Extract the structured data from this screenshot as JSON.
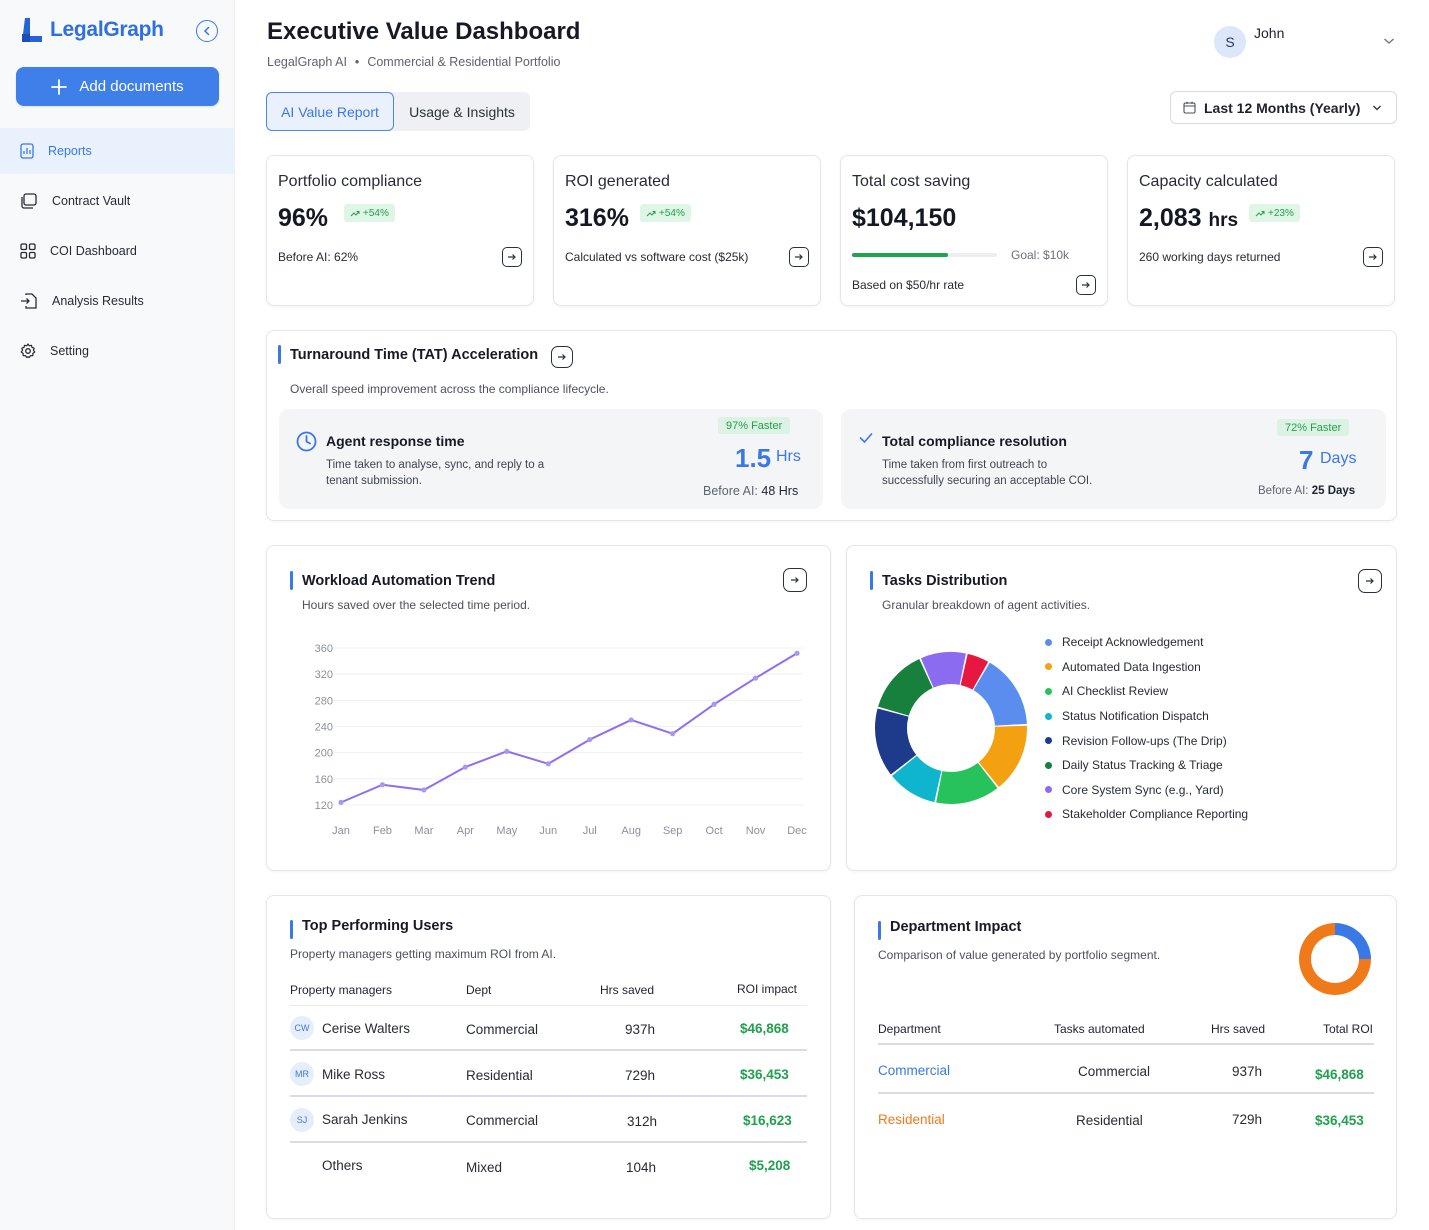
{
  "app": {
    "name": "LegalGraph"
  },
  "sidebar": {
    "add_label": "Add documents",
    "items": [
      {
        "label": "Reports",
        "icon": "reports-icon",
        "active": true
      },
      {
        "label": "Contract Vault",
        "icon": "folder-copy-icon",
        "active": false
      },
      {
        "label": "COI Dashboard",
        "icon": "grid-icon",
        "active": false
      },
      {
        "label": "Analysis Results",
        "icon": "file-import-icon",
        "active": false
      },
      {
        "label": "Setting",
        "icon": "gear-icon",
        "active": false
      }
    ]
  },
  "header": {
    "title": "Executive Value Dashboard",
    "breadcrumb": [
      "LegalGraph AI",
      "•",
      "Commercial & Residential Portfolio"
    ],
    "user_initial": "S",
    "user_name": "John",
    "tabs": [
      "AI Value Report",
      "Usage & Insights"
    ],
    "range": "Last 12 Months (Yearly)"
  },
  "kpis": [
    {
      "title": "Portfolio compliance",
      "value": "96%",
      "badge": "+54%",
      "note": "Before AI: 62%"
    },
    {
      "title": "ROI generated",
      "value": "316%",
      "badge": "+54%",
      "note": "Calculated vs software cost ($25k)"
    },
    {
      "title": "Total cost saving",
      "value": "$104,150",
      "goal": "Goal: $10k",
      "progress_pct": 66,
      "note": "Based on $50/hr rate"
    },
    {
      "title": "Capacity calculated",
      "value": "2,083",
      "unit": "hrs",
      "badge": "+23%",
      "note": "260 working days returned"
    }
  ],
  "tat": {
    "title": "Turnaround Time (TAT) Acceleration",
    "subtitle": "Overall speed improvement across the compliance lifecycle.",
    "left": {
      "title": "Agent response time",
      "desc1": "Time taken to analyse, sync, and reply to a",
      "desc2": "tenant submission.",
      "badge": "97% Faster",
      "value": "1.5",
      "unit": "Hrs",
      "before_label": "Before AI:",
      "before_value": "48 Hrs"
    },
    "right": {
      "title": "Total compliance resolution",
      "desc1": "Time taken from first outreach to",
      "desc2": "successfully securing an acceptable COI.",
      "badge": "72% Faster",
      "value": "7",
      "unit": "Days",
      "before_label": "Before AI:",
      "before_value": "25 Days"
    }
  },
  "workload": {
    "title": "Workload Automation Trend",
    "subtitle": "Hours saved over the selected time period."
  },
  "tasks": {
    "title": "Tasks Distribution",
    "subtitle": "Granular breakdown of agent activities.",
    "legend": [
      {
        "label": "Receipt Acknowledgement",
        "color": "#5b8def"
      },
      {
        "label": "Automated Data Ingestion",
        "color": "#f3a011"
      },
      {
        "label": "AI Checklist Review",
        "color": "#27c25c"
      },
      {
        "label": "Status Notification Dispatch",
        "color": "#0fb5cc"
      },
      {
        "label": "Revision Follow-ups (The Drip)",
        "color": "#1e3a8a"
      },
      {
        "label": "Daily Status Tracking & Triage",
        "color": "#16803c"
      },
      {
        "label": "Core System Sync (e.g., Yard)",
        "color": "#8b6cf0"
      },
      {
        "label": "Stakeholder Compliance Reporting",
        "color": "#e6183f"
      }
    ]
  },
  "chart_data": [
    {
      "type": "line",
      "x": [
        "Jan",
        "Feb",
        "Mar",
        "Apr",
        "May",
        "Jun",
        "Jul",
        "Aug",
        "Sep",
        "Oct",
        "Nov",
        "Dec"
      ],
      "series": [
        {
          "values": [
            124,
            151,
            143,
            178,
            202,
            183,
            220,
            250,
            229,
            274,
            314,
            352
          ]
        }
      ],
      "ylim": [
        120,
        360
      ],
      "yticks": [
        120,
        160,
        200,
        240,
        280,
        320,
        360
      ],
      "grid": true,
      "color": "#8d6ff0"
    },
    {
      "type": "pie",
      "donut": true,
      "categories": [
        "Receipt Acknowledgement",
        "Automated Data Ingestion",
        "AI Checklist Review",
        "Status Notification Dispatch",
        "Revision Follow-ups (The Drip)",
        "Daily Status Tracking & Triage",
        "Core System Sync (e.g., Yard)",
        "Stakeholder Compliance Reporting"
      ],
      "values": [
        16,
        15,
        14,
        11,
        15,
        14,
        10,
        5
      ]
    },
    {
      "type": "pie",
      "donut": true,
      "categories": [
        "Residential",
        "Commercial"
      ],
      "values": [
        75,
        25
      ]
    }
  ],
  "top_users": {
    "title": "Top Performing Users",
    "subtitle": "Property managers getting maximum ROI from AI.",
    "headers": [
      "Property managers",
      "Dept",
      "Hrs saved",
      "ROI impact"
    ],
    "rows": [
      {
        "initials": "CW",
        "name": "Cerise Walters",
        "dept": "Commercial",
        "hrs": "937h",
        "roi": "$46,868"
      },
      {
        "initials": "MR",
        "name": "Mike Ross",
        "dept": "Residential",
        "hrs": "729h",
        "roi": "$36,453"
      },
      {
        "initials": "SJ",
        "name": "Sarah Jenkins",
        "dept": "Commercial",
        "hrs": "312h",
        "roi": "$16,623"
      },
      {
        "initials": "",
        "name": "Others",
        "dept": "Mixed",
        "hrs": "104h",
        "roi": "$5,208"
      }
    ]
  },
  "dept_impact": {
    "title": "Department Impact",
    "subtitle": "Comparison of value generated by portfolio segment.",
    "headers": [
      "Department",
      "Tasks automated",
      "Hrs saved",
      "Total ROI"
    ],
    "rows": [
      {
        "dept": "Commercial",
        "tasks": "Commercial",
        "hrs": "937h",
        "roi": "$46,868",
        "color": "#3a78e6"
      },
      {
        "dept": "Residential",
        "tasks": "Residential",
        "hrs": "729h",
        "roi": "$36,453",
        "color": "#f07a1a"
      }
    ]
  }
}
